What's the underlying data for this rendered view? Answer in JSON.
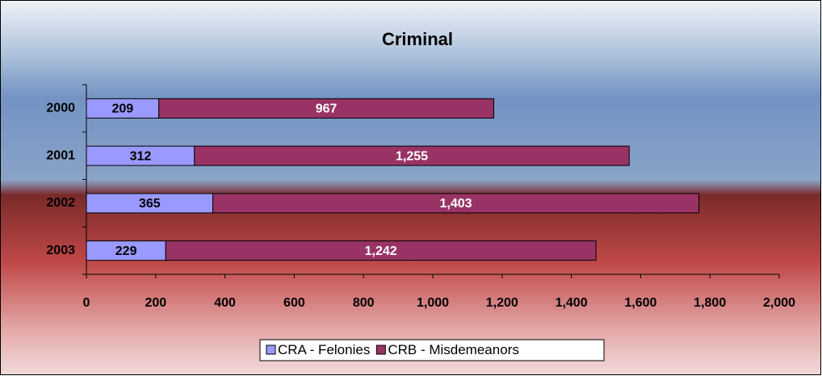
{
  "chart_data": {
    "type": "stacked-barh",
    "title": "Criminal",
    "categories": [
      "2000",
      "2001",
      "2002",
      "2003"
    ],
    "series": [
      {
        "name": "CRA - Felonies",
        "color": "#9999ff",
        "values": [
          209,
          312,
          365,
          229
        ]
      },
      {
        "name": "CRB - Misdemeanors",
        "color": "#993366",
        "values": [
          967,
          1255,
          1403,
          1242
        ],
        "value_labels": [
          "967",
          "1,255",
          "1,403",
          "1,242"
        ]
      }
    ],
    "xlim": [
      0,
      2000
    ],
    "xticks": [
      0,
      200,
      400,
      600,
      800,
      {
        "value": 1000,
        "label": "1,000"
      },
      {
        "value": 1200,
        "label": "1,200"
      },
      {
        "value": 1400,
        "label": "1,400"
      },
      {
        "value": 1600,
        "label": "1,600"
      },
      {
        "value": 1800,
        "label": "1,800"
      },
      {
        "value": 2000,
        "label": "2,000"
      }
    ],
    "legend": "bottom"
  }
}
